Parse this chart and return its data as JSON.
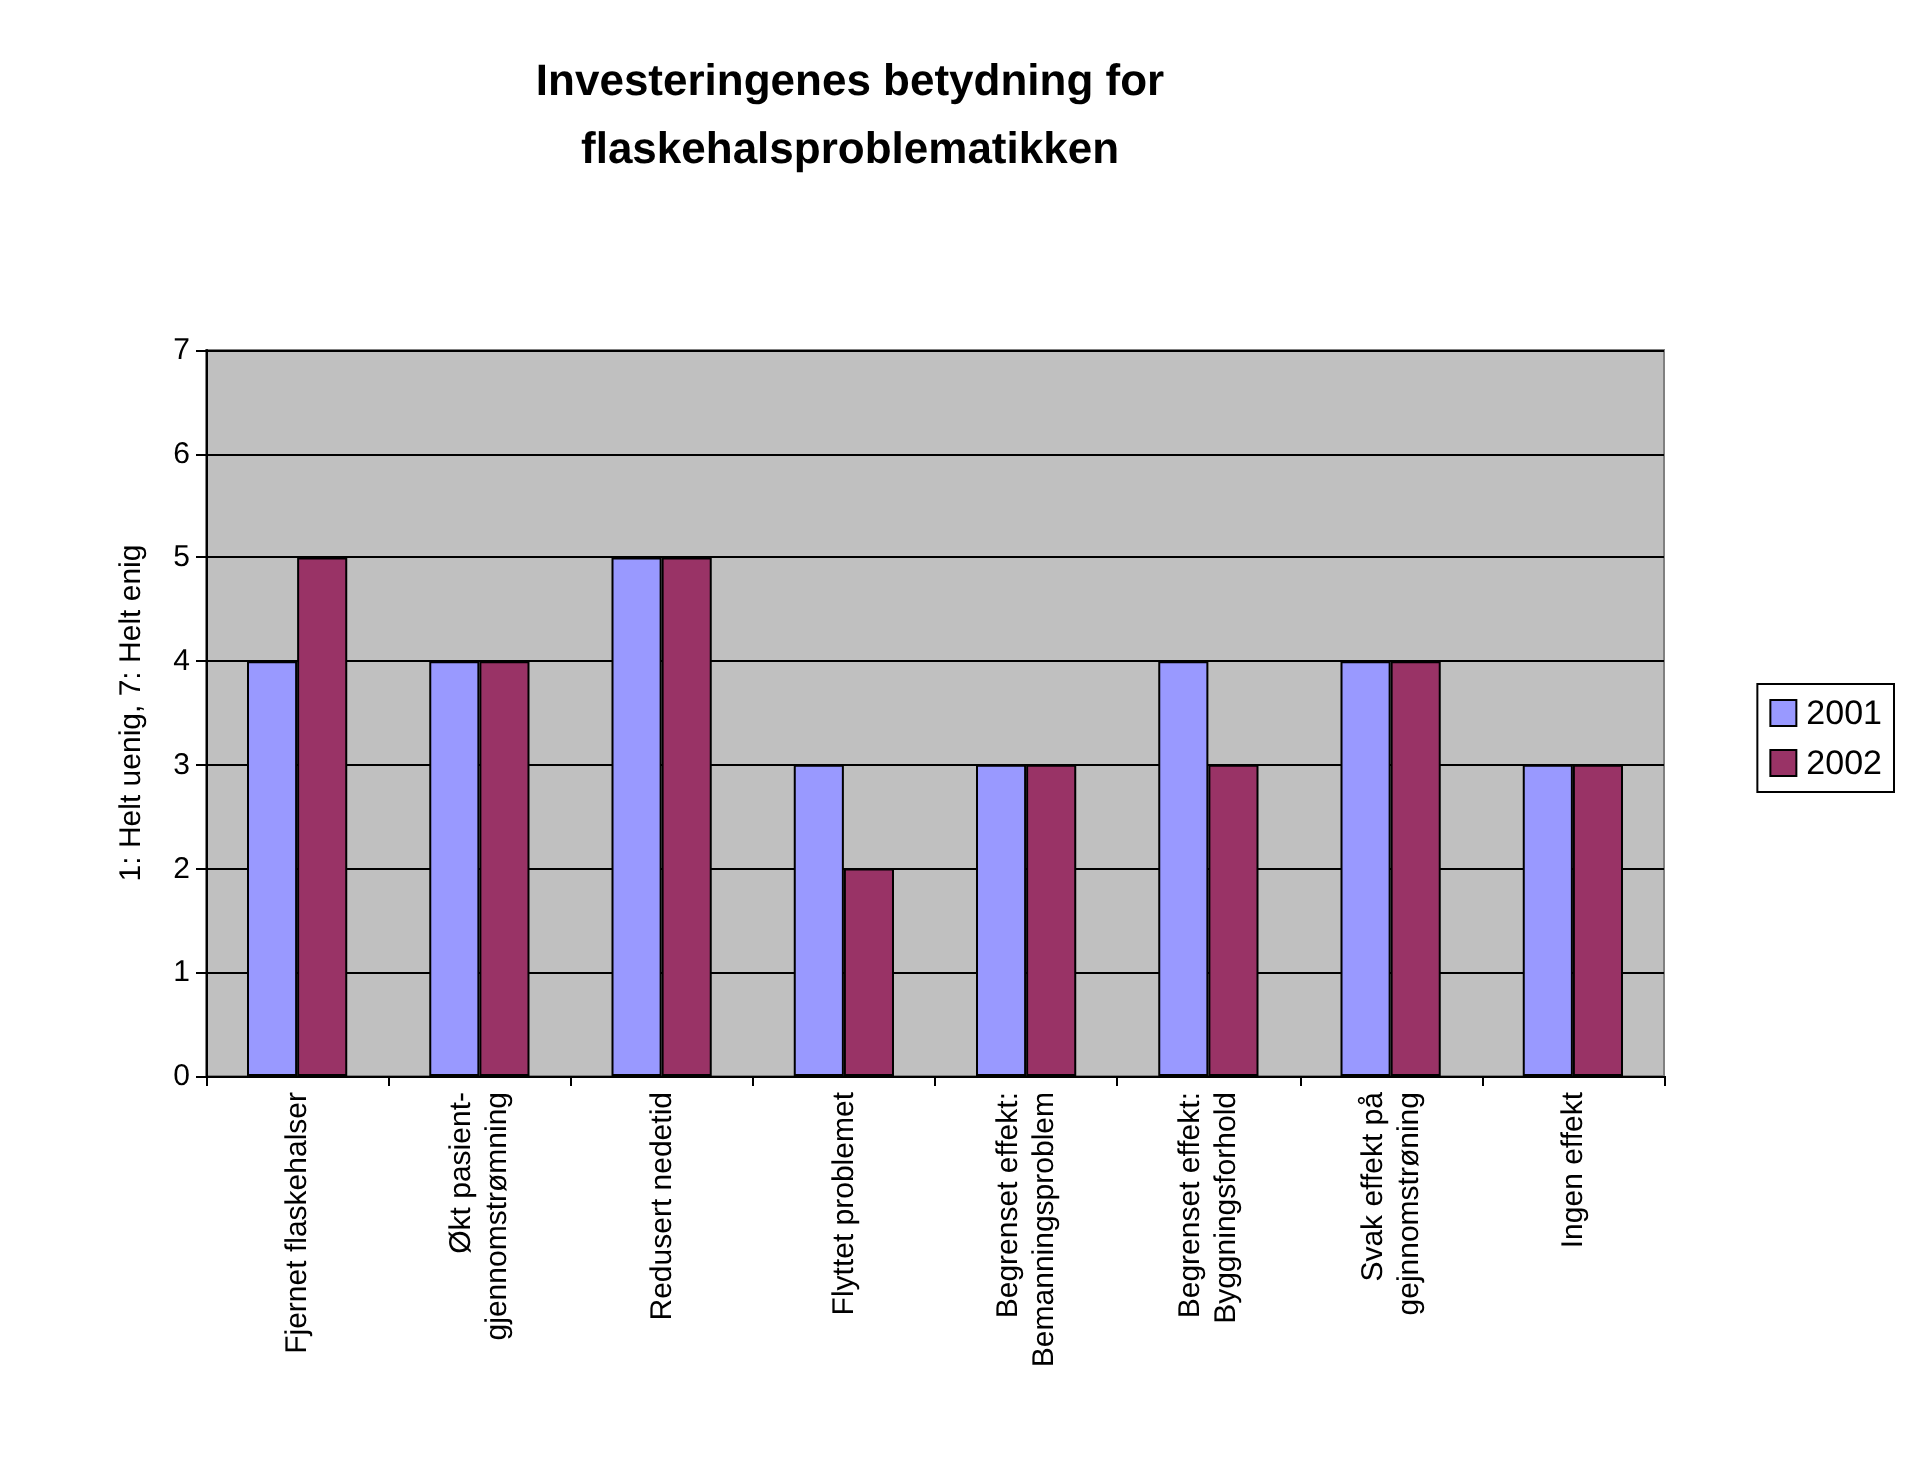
{
  "chart_data": {
    "type": "bar",
    "title": "Investeringenes betydning for\nflaskehalsproblematikken",
    "ylabel": "1: Helt uenig, 7: Helt enig",
    "categories": [
      "Fjernet flaskehalser",
      "Økt pasient-\ngjennomstrømning",
      "Redusert nedetid",
      "Flyttet problemet",
      "Begrenset effekt:\nBemanningsproblem",
      "Begrenset effekt:\nByggningsforhold",
      "Svak effekt på\ngejnnomstrøning",
      "Ingen effekt"
    ],
    "series": [
      {
        "name": "2001",
        "color": "#9999ff",
        "values": [
          4,
          4,
          5,
          3,
          3,
          4,
          4,
          3
        ]
      },
      {
        "name": "2002",
        "color": "#993366",
        "values": [
          5,
          4,
          5,
          2,
          3,
          3,
          4,
          3
        ]
      }
    ],
    "ylim": [
      0,
      7
    ],
    "yticks": [
      0,
      1,
      2,
      3,
      4,
      5,
      6,
      7
    ],
    "grid": "y",
    "legend": "right"
  }
}
